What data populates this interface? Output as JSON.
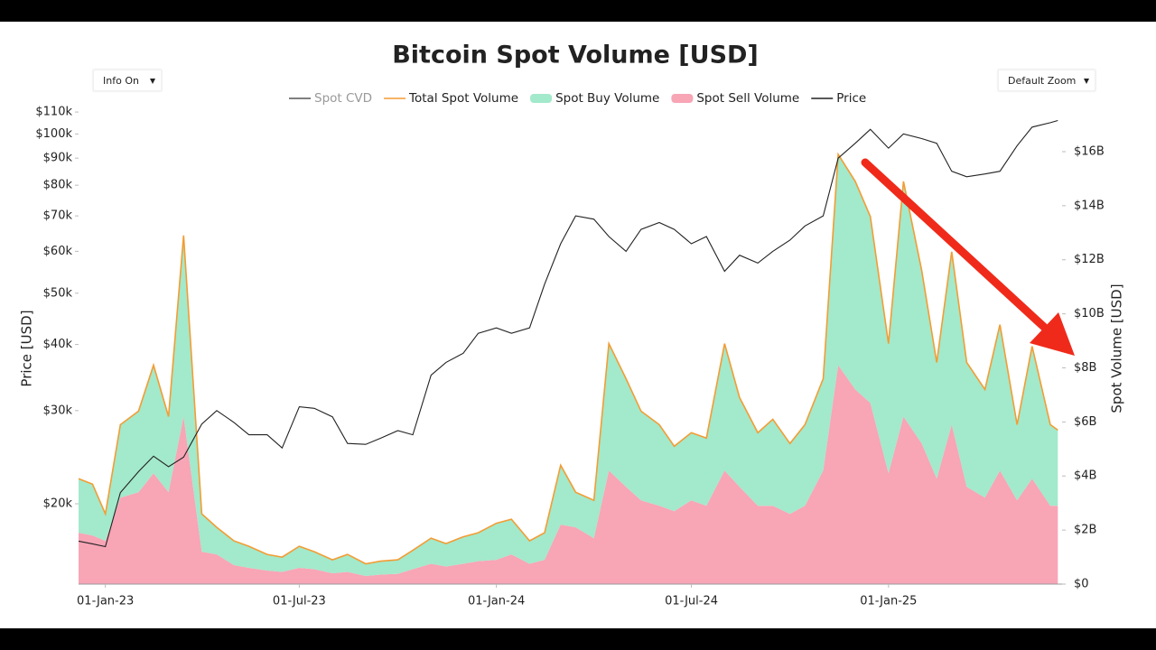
{
  "controls": {
    "info": "Info On",
    "zoom": "Default Zoom"
  },
  "chart_data": {
    "type": "area",
    "title": "Bitcoin Spot Volume [USD]",
    "ylabel": "Price [USD]",
    "y2label": "Spot Volume [USD]",
    "ylog": true,
    "x": [
      "2022-12-07",
      "2022-12-20",
      "2023-01-01",
      "2023-01-15",
      "2023-02-01",
      "2023-02-15",
      "2023-03-01",
      "2023-03-15",
      "2023-04-01",
      "2023-04-15",
      "2023-05-01",
      "2023-05-15",
      "2023-06-01",
      "2023-06-15",
      "2023-07-01",
      "2023-07-15",
      "2023-08-01",
      "2023-08-15",
      "2023-09-01",
      "2023-09-15",
      "2023-10-01",
      "2023-10-15",
      "2023-11-01",
      "2023-11-15",
      "2023-12-01",
      "2023-12-15",
      "2024-01-01",
      "2024-01-15",
      "2024-02-01",
      "2024-02-15",
      "2024-03-01",
      "2024-03-15",
      "2024-04-01",
      "2024-04-15",
      "2024-05-01",
      "2024-05-15",
      "2024-06-01",
      "2024-06-15",
      "2024-07-01",
      "2024-07-15",
      "2024-08-01",
      "2024-08-15",
      "2024-09-01",
      "2024-09-15",
      "2024-10-01",
      "2024-10-15",
      "2024-11-01",
      "2024-11-15",
      "2024-12-01",
      "2024-12-15",
      "2025-01-01",
      "2025-01-15",
      "2025-02-01",
      "2025-02-15",
      "2025-03-01",
      "2025-03-15",
      "2025-04-01",
      "2025-04-15",
      "2025-05-01",
      "2025-05-15",
      "2025-06-01",
      "2025-06-08"
    ],
    "xlim": [
      "2022-12-07",
      "2025-06-12"
    ],
    "xticks": [
      {
        "value": "2023-01-01",
        "label": "01-Jan-23"
      },
      {
        "value": "2023-07-01",
        "label": "01-Jul-23"
      },
      {
        "value": "2024-01-01",
        "label": "01-Jan-24"
      },
      {
        "value": "2024-07-01",
        "label": "01-Jul-24"
      },
      {
        "value": "2025-01-01",
        "label": "01-Jan-25"
      }
    ],
    "ylim": [
      14100,
      114000
    ],
    "yticks": [
      {
        "value": 20000,
        "label": "$20k"
      },
      {
        "value": 30000,
        "label": "$30k"
      },
      {
        "value": 40000,
        "label": "$40k"
      },
      {
        "value": 50000,
        "label": "$50k"
      },
      {
        "value": 60000,
        "label": "$60k"
      },
      {
        "value": 70000,
        "label": "$70k"
      },
      {
        "value": 80000,
        "label": "$80k"
      },
      {
        "value": 90000,
        "label": "$90k"
      },
      {
        "value": 100000,
        "label": "$100k"
      },
      {
        "value": 110000,
        "label": "$110k"
      }
    ],
    "y2lim": [
      0,
      17.77
    ],
    "y2ticks": [
      {
        "value": 0,
        "label": "$0"
      },
      {
        "value": 2,
        "label": "$2B"
      },
      {
        "value": 4,
        "label": "$4B"
      },
      {
        "value": 6,
        "label": "$6B"
      },
      {
        "value": 8,
        "label": "$8B"
      },
      {
        "value": 10,
        "label": "$10B"
      },
      {
        "value": 12,
        "label": "$12B"
      },
      {
        "value": 14,
        "label": "$14B"
      },
      {
        "value": 16,
        "label": "$16B"
      }
    ],
    "series": [
      {
        "name": "Spot CVD",
        "color": "#555555",
        "kind": "line",
        "hidden": true
      },
      {
        "name": "Total Spot Volume",
        "color": "#f39c34",
        "kind": "line",
        "axis": "y2",
        "values": [
          3.9,
          3.7,
          2.6,
          5.9,
          6.4,
          8.1,
          6.2,
          12.9,
          2.6,
          2.1,
          1.6,
          1.4,
          1.1,
          1.0,
          1.4,
          1.2,
          0.9,
          1.1,
          0.75,
          0.85,
          0.9,
          1.25,
          1.7,
          1.5,
          1.75,
          1.9,
          2.25,
          2.4,
          1.6,
          1.9,
          4.4,
          3.4,
          3.1,
          8.9,
          7.6,
          6.4,
          5.9,
          5.1,
          5.6,
          5.4,
          8.9,
          6.9,
          5.6,
          6.1,
          5.2,
          5.9,
          7.6,
          15.9,
          14.9,
          13.6,
          8.9,
          14.9,
          11.6,
          8.2,
          12.3,
          8.2,
          7.2,
          9.6,
          5.9,
          8.8,
          5.9,
          5.7
        ]
      },
      {
        "name": "Spot Buy Volume",
        "color": "#a3e9cb",
        "kind": "area",
        "stack": true,
        "axis": "y2",
        "values": [
          2.0,
          1.9,
          1.0,
          2.7,
          3.0,
          4.0,
          2.8,
          6.7,
          1.4,
          1.0,
          0.9,
          0.8,
          0.6,
          0.55,
          0.8,
          0.65,
          0.5,
          0.65,
          0.45,
          0.5,
          0.52,
          0.7,
          0.95,
          0.85,
          1.0,
          1.05,
          1.35,
          1.3,
          0.85,
          1.0,
          2.2,
          1.3,
          1.4,
          4.7,
          4.0,
          3.3,
          3.0,
          2.4,
          2.5,
          2.5,
          4.7,
          3.3,
          2.7,
          3.2,
          2.6,
          3.0,
          3.4,
          7.8,
          7.7,
          6.9,
          4.8,
          8.7,
          6.4,
          4.3,
          6.4,
          4.6,
          4.0,
          5.4,
          2.8,
          4.9,
          3.0,
          2.8
        ]
      },
      {
        "name": "Spot Sell Volume",
        "color": "#f8a5b6",
        "kind": "area",
        "stack": true,
        "axis": "y2",
        "values": [
          1.9,
          1.8,
          1.6,
          3.2,
          3.4,
          4.1,
          3.4,
          6.2,
          1.2,
          1.1,
          0.7,
          0.6,
          0.5,
          0.45,
          0.6,
          0.55,
          0.4,
          0.45,
          0.3,
          0.35,
          0.38,
          0.55,
          0.75,
          0.65,
          0.75,
          0.85,
          0.9,
          1.1,
          0.75,
          0.9,
          2.2,
          2.1,
          1.7,
          4.2,
          3.6,
          3.1,
          2.9,
          2.7,
          3.1,
          2.9,
          4.2,
          3.6,
          2.9,
          2.9,
          2.6,
          2.9,
          4.2,
          8.1,
          7.2,
          6.7,
          4.1,
          6.2,
          5.2,
          3.9,
          5.9,
          3.6,
          3.2,
          4.2,
          3.1,
          3.9,
          2.9,
          2.9
        ]
      },
      {
        "name": "Price",
        "color": "#222222",
        "kind": "line",
        "axis": "y",
        "values": [
          17000,
          16800,
          16600,
          21000,
          23000,
          24600,
          23500,
          24500,
          28300,
          30000,
          28500,
          27000,
          27000,
          25500,
          30500,
          30300,
          29200,
          26000,
          25900,
          26600,
          27500,
          27000,
          35000,
          37000,
          38500,
          42000,
          43000,
          42000,
          43000,
          52000,
          62000,
          70000,
          69000,
          64000,
          60000,
          66000,
          68000,
          66000,
          62000,
          64000,
          55000,
          59000,
          57000,
          60000,
          63000,
          67000,
          70000,
          90000,
          96000,
          102000,
          94000,
          100000,
          98000,
          96000,
          85000,
          83000,
          84000,
          85000,
          95000,
          103000,
          105000,
          106000
        ]
      }
    ]
  }
}
